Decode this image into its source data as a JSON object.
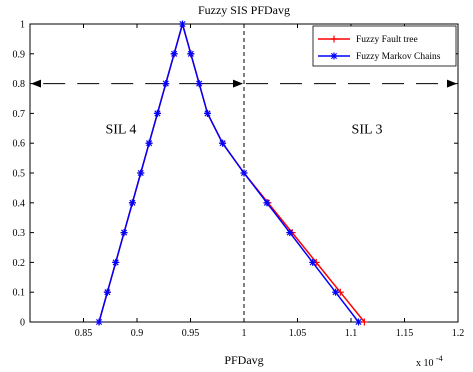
{
  "chart_data": {
    "type": "line",
    "title": "Fuzzy SIS PFDavg",
    "xlabel": "PFDavg",
    "ylabel": "",
    "x_multiplier_label": "x 10",
    "x_multiplier_exponent": "-4",
    "xlim": [
      0.8,
      1.2
    ],
    "ylim": [
      0,
      1
    ],
    "xticks": [
      0.85,
      0.9,
      0.95,
      1,
      1.05,
      1.1,
      1.15,
      1.2
    ],
    "xtick_labels": [
      "0.85",
      "0.9",
      "0.95",
      "1",
      "1.05",
      "1.1",
      "1.15",
      "1.2"
    ],
    "yticks": [
      0,
      0.1,
      0.2,
      0.3,
      0.4,
      0.5,
      0.6,
      0.7,
      0.8,
      0.9,
      1
    ],
    "ytick_labels": [
      "0",
      "0.1",
      "0.2",
      "0.3",
      "0.4",
      "0.5",
      "0.6",
      "0.7",
      "0.8",
      "0.9",
      "1"
    ],
    "grid": false,
    "legend_position": "top-right",
    "series": [
      {
        "name": "Fuzzy Fault tree",
        "color": "#ff0000",
        "marker": "plus",
        "x": [
          0.8645,
          0.8723,
          0.8801,
          0.8879,
          0.8957,
          0.9035,
          0.9113,
          0.9191,
          0.9269,
          0.9347,
          0.9425,
          0.9503,
          0.9581,
          0.9659,
          0.98,
          1.0,
          1.0225,
          1.045,
          1.0675,
          1.09,
          1.1125
        ],
        "y": [
          0,
          0.1,
          0.2,
          0.3,
          0.4,
          0.5,
          0.6,
          0.7,
          0.8,
          0.9,
          1.0,
          0.9,
          0.8,
          0.7,
          0.6,
          0.5,
          0.4,
          0.3,
          0.2,
          0.1,
          0.0
        ]
      },
      {
        "name": "Fuzzy Markov Chains",
        "color": "#0000ff",
        "marker": "star",
        "x": [
          0.8645,
          0.8723,
          0.8801,
          0.8879,
          0.8957,
          0.9035,
          0.9113,
          0.9191,
          0.9269,
          0.9347,
          0.9425,
          0.9503,
          0.9581,
          0.9659,
          0.98,
          1.0,
          1.0214,
          1.0428,
          1.0642,
          1.0856,
          1.107
        ],
        "y": [
          0,
          0.1,
          0.2,
          0.3,
          0.4,
          0.5,
          0.6,
          0.7,
          0.8,
          0.9,
          1.0,
          0.9,
          0.8,
          0.7,
          0.6,
          0.5,
          0.4,
          0.3,
          0.2,
          0.1,
          0.0
        ]
      }
    ],
    "reference_lines": {
      "vertical_x": 1.0,
      "horizontal_y": 0.8
    },
    "annotations": [
      {
        "text": "SIL 4",
        "x": 0.885,
        "y": 0.65
      },
      {
        "text": "SIL 3",
        "x": 1.115,
        "y": 0.65
      }
    ]
  }
}
